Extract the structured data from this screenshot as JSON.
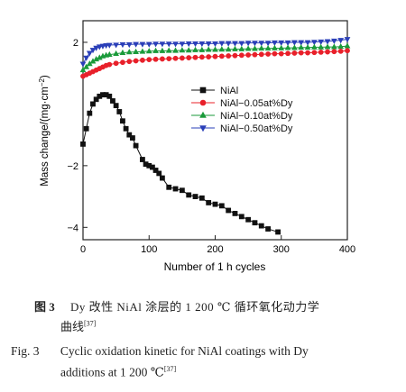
{
  "chart_data": {
    "type": "scatter",
    "xlabel": "Number of 1 h cycles",
    "ylabel": "Mass change/(mg·cm",
    "ylabel_sup": "−2",
    "ylabel_close": ")",
    "xlim": [
      0,
      400
    ],
    "ylim": [
      -4.4,
      2.7
    ],
    "xticks": [
      0,
      100,
      200,
      300,
      400
    ],
    "yticks": [
      2,
      -2,
      -4
    ],
    "legend_position": "center-right",
    "series": [
      {
        "name": "NiAl",
        "color": "#111111",
        "marker": "square",
        "x": [
          0,
          5,
          10,
          15,
          20,
          25,
          30,
          35,
          40,
          45,
          50,
          55,
          60,
          65,
          70,
          75,
          80,
          90,
          95,
          100,
          105,
          110,
          115,
          120,
          130,
          140,
          150,
          160,
          170,
          180,
          190,
          200,
          210,
          220,
          230,
          240,
          250,
          260,
          270,
          280,
          295
        ],
        "y": [
          -1.3,
          -0.8,
          -0.3,
          0.0,
          0.15,
          0.25,
          0.3,
          0.3,
          0.25,
          0.1,
          -0.05,
          -0.25,
          -0.55,
          -0.8,
          -1.0,
          -1.1,
          -1.35,
          -1.8,
          -1.95,
          -2.0,
          -2.05,
          -2.15,
          -2.25,
          -2.4,
          -2.7,
          -2.75,
          -2.8,
          -2.95,
          -3.0,
          -3.05,
          -3.2,
          -3.25,
          -3.3,
          -3.45,
          -3.55,
          -3.65,
          -3.75,
          -3.85,
          -3.95,
          -4.05,
          -4.15
        ]
      },
      {
        "name": "NiAl−0.05at%Dy",
        "color": "#e8202a",
        "marker": "circle",
        "x": [
          0,
          5,
          10,
          15,
          20,
          25,
          30,
          35,
          40,
          50,
          60,
          70,
          80,
          90,
          100,
          110,
          120,
          130,
          140,
          150,
          160,
          170,
          180,
          190,
          200,
          210,
          220,
          230,
          240,
          250,
          260,
          270,
          280,
          290,
          300,
          310,
          320,
          330,
          340,
          350,
          360,
          370,
          380,
          390,
          400
        ],
        "y": [
          0.9,
          0.95,
          1.0,
          1.05,
          1.1,
          1.15,
          1.2,
          1.25,
          1.28,
          1.32,
          1.35,
          1.38,
          1.4,
          1.42,
          1.44,
          1.45,
          1.46,
          1.47,
          1.48,
          1.49,
          1.5,
          1.51,
          1.52,
          1.53,
          1.54,
          1.55,
          1.56,
          1.57,
          1.58,
          1.59,
          1.6,
          1.61,
          1.62,
          1.63,
          1.63,
          1.64,
          1.65,
          1.66,
          1.66,
          1.67,
          1.68,
          1.69,
          1.7,
          1.71,
          1.73
        ]
      },
      {
        "name": "NiAl−0.10at%Dy",
        "color": "#1a9a3a",
        "marker": "triangle-up",
        "x": [
          0,
          5,
          10,
          15,
          20,
          25,
          30,
          35,
          40,
          50,
          60,
          70,
          80,
          90,
          100,
          110,
          120,
          130,
          140,
          150,
          160,
          170,
          180,
          190,
          200,
          210,
          220,
          230,
          240,
          250,
          260,
          270,
          280,
          290,
          300,
          310,
          320,
          330,
          340,
          350,
          360,
          370,
          380,
          390,
          400
        ],
        "y": [
          1.1,
          1.2,
          1.3,
          1.38,
          1.45,
          1.5,
          1.55,
          1.58,
          1.6,
          1.63,
          1.66,
          1.68,
          1.69,
          1.7,
          1.71,
          1.72,
          1.72,
          1.73,
          1.73,
          1.74,
          1.74,
          1.75,
          1.75,
          1.76,
          1.76,
          1.77,
          1.77,
          1.78,
          1.78,
          1.79,
          1.79,
          1.8,
          1.8,
          1.81,
          1.81,
          1.82,
          1.82,
          1.83,
          1.83,
          1.84,
          1.84,
          1.85,
          1.85,
          1.86,
          1.88
        ]
      },
      {
        "name": "NiAl−0.50at%Dy",
        "color": "#2a3fb8",
        "marker": "triangle-down",
        "x": [
          0,
          5,
          10,
          15,
          20,
          25,
          30,
          35,
          40,
          50,
          60,
          70,
          80,
          90,
          100,
          110,
          120,
          130,
          140,
          150,
          160,
          170,
          180,
          190,
          200,
          210,
          220,
          230,
          240,
          250,
          260,
          270,
          280,
          290,
          300,
          310,
          320,
          330,
          340,
          350,
          360,
          370,
          380,
          390,
          400
        ],
        "y": [
          1.3,
          1.5,
          1.65,
          1.75,
          1.82,
          1.86,
          1.88,
          1.9,
          1.91,
          1.92,
          1.93,
          1.93,
          1.94,
          1.94,
          1.94,
          1.95,
          1.95,
          1.95,
          1.95,
          1.95,
          1.96,
          1.96,
          1.96,
          1.96,
          1.96,
          1.97,
          1.97,
          1.97,
          1.97,
          1.98,
          1.98,
          1.98,
          1.98,
          1.99,
          1.99,
          1.99,
          2.0,
          2.0,
          2.0,
          2.01,
          2.02,
          2.03,
          2.05,
          2.07,
          2.1
        ]
      }
    ]
  },
  "caption": {
    "cn_label": "图 3",
    "cn_text": "Dy 改性 NiAl 涂层的 1 200 ℃ 循环氧化动力学",
    "cn_text2": "曲线",
    "cn_ref": "[37]",
    "en_label": "Fig. 3",
    "en_text": "Cyclic oxidation kinetic for NiAl coatings with Dy",
    "en_text2": "additions at 1 200 ℃",
    "en_ref": "[37]"
  }
}
